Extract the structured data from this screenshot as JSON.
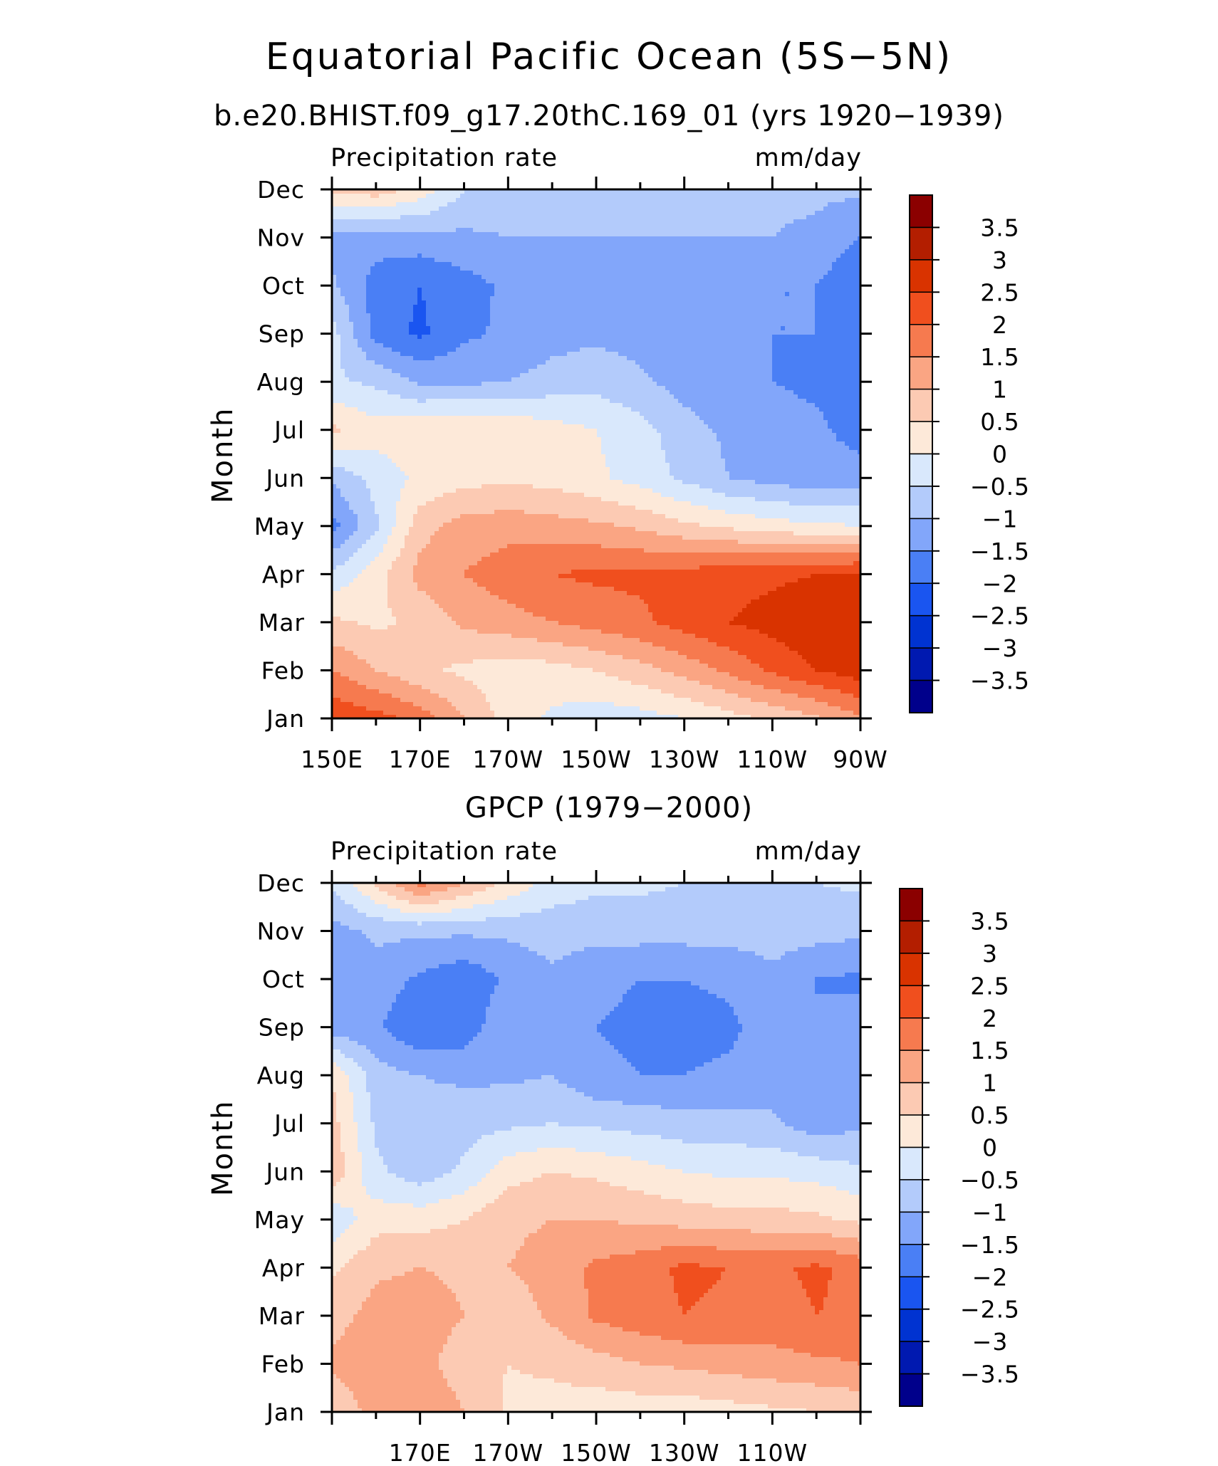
{
  "title": "Equatorial Pacific Ocean (5S−5N)",
  "chart_data": [
    {
      "type": "heatmap",
      "title": "b.e20.BHIST.f09_g17.20thC.169_01 (yrs 1920−1939)",
      "left_label": "Precipitation rate",
      "right_label": "mm/day",
      "ylabel": "Month",
      "x_tick_labels": [
        "150E",
        "170E",
        "170W",
        "150W",
        "130W",
        "110W",
        "90W"
      ],
      "y_tick_labels": [
        "Jan",
        "Feb",
        "Mar",
        "Apr",
        "May",
        "Jun",
        "Jul",
        "Aug",
        "Sep",
        "Oct",
        "Nov",
        "Dec"
      ],
      "x": [
        150,
        160,
        170,
        180,
        190,
        200,
        210,
        220,
        230,
        240,
        250,
        260,
        270
      ],
      "y": [
        "Jan",
        "Feb",
        "Mar",
        "Apr",
        "May",
        "Jun",
        "Jul",
        "Aug",
        "Sep",
        "Oct",
        "Nov",
        "Dec"
      ],
      "xlim": [
        150,
        270
      ],
      "ylim": [
        1,
        12
      ],
      "z": [
        [
          2.4,
          2.2,
          1.8,
          1.0,
          0.3,
          -0.1,
          -0.3,
          -0.2,
          0.0,
          0.3,
          0.6,
          0.9,
          1.4
        ],
        [
          1.5,
          1.0,
          0.6,
          0.4,
          0.2,
          0.3,
          0.5,
          0.8,
          1.2,
          1.6,
          2.1,
          2.5,
          2.8
        ],
        [
          0.6,
          0.4,
          0.6,
          1.1,
          1.3,
          1.5,
          1.7,
          1.9,
          2.2,
          2.5,
          2.7,
          2.9,
          3.0
        ],
        [
          -0.4,
          0.3,
          1.2,
          1.5,
          1.8,
          2.0,
          2.1,
          2.1,
          2.2,
          2.3,
          2.4,
          2.5,
          2.6
        ],
        [
          -1.7,
          -0.6,
          0.8,
          1.2,
          1.3,
          1.2,
          1.1,
          0.9,
          0.6,
          0.4,
          0.2,
          0.1,
          0.0
        ],
        [
          -0.9,
          -0.3,
          0.1,
          0.3,
          0.4,
          0.3,
          0.1,
          -0.2,
          -0.6,
          -1.0,
          -1.2,
          -1.3,
          -1.3
        ],
        [
          0.6,
          0.2,
          0.4,
          0.5,
          0.4,
          0.2,
          0.0,
          -0.3,
          -0.8,
          -1.1,
          -1.3,
          -1.4,
          -1.7
        ],
        [
          -0.4,
          -0.6,
          -1.1,
          -1.1,
          -1.0,
          -0.8,
          -0.7,
          -0.9,
          -1.2,
          -1.4,
          -1.5,
          -1.6,
          -1.8
        ],
        [
          -0.3,
          -1.7,
          -2.1,
          -1.6,
          -1.4,
          -1.2,
          -1.1,
          -1.2,
          -1.3,
          -1.4,
          -1.5,
          -1.5,
          -1.8
        ],
        [
          -0.9,
          -1.7,
          -2.0,
          -1.7,
          -1.4,
          -1.3,
          -1.2,
          -1.2,
          -1.3,
          -1.4,
          -1.5,
          -1.5,
          -2.0
        ],
        [
          -1.2,
          -1.3,
          -1.2,
          -1.1,
          -1.0,
          -1.0,
          -1.0,
          -1.0,
          -1.0,
          -1.0,
          -1.0,
          -1.1,
          -1.5
        ],
        [
          0.6,
          0.8,
          0.3,
          -0.5,
          -0.8,
          -0.9,
          -0.9,
          -0.9,
          -0.9,
          -0.9,
          -0.9,
          -0.9,
          -0.9
        ]
      ],
      "contour_levels": [
        -3.5,
        -3,
        -2.5,
        -2,
        -1.5,
        -1,
        -0.5,
        0,
        0.5,
        1,
        1.5,
        2,
        2.5,
        3,
        3.5
      ],
      "colorbar_labels": [
        "3.5",
        "3",
        "2.5",
        "2",
        "1.5",
        "1",
        "0.5",
        "0",
        "−0.5",
        "−1",
        "−1.5",
        "−2",
        "−2.5",
        "−3",
        "−3.5"
      ],
      "colors": [
        "#00008b",
        "#0019b0",
        "#0033d1",
        "#1a55f0",
        "#4a7ff5",
        "#82a6fa",
        "#b3cbfb",
        "#d9e8fc",
        "#fde9d9",
        "#fccab3",
        "#faa583",
        "#f67a4f",
        "#f04f1e",
        "#d93300",
        "#b31e00",
        "#8b0000"
      ],
      "legend": "right"
    },
    {
      "type": "heatmap",
      "title": "GPCP (1979−2000)",
      "left_label": "Precipitation rate",
      "right_label": "mm/day",
      "ylabel": "Month",
      "x_tick_labels": [
        "170E",
        "170W",
        "150W",
        "130W",
        "110W"
      ],
      "y_tick_labels": [
        "Jan",
        "Feb",
        "Mar",
        "Apr",
        "May",
        "Jun",
        "Jul",
        "Aug",
        "Sep",
        "Oct",
        "Nov",
        "Dec"
      ],
      "x": [
        150,
        160,
        170,
        180,
        190,
        200,
        210,
        220,
        230,
        240,
        250,
        260,
        270
      ],
      "y": [
        "Jan",
        "Feb",
        "Mar",
        "Apr",
        "May",
        "Jun",
        "Jul",
        "Aug",
        "Sep",
        "Oct",
        "Nov",
        "Dec"
      ],
      "xlim": [
        150,
        270
      ],
      "ylim": [
        1,
        12
      ],
      "z": [
        [
          0.6,
          1.2,
          1.5,
          1.0,
          0.4,
          0.3,
          0.2,
          0.2,
          0.2,
          0.3,
          0.4,
          0.5,
          0.6
        ],
        [
          1.1,
          1.3,
          1.2,
          0.7,
          0.5,
          0.6,
          0.8,
          1.0,
          1.1,
          1.2,
          1.3,
          1.4,
          1.5
        ],
        [
          0.8,
          1.2,
          1.3,
          1.0,
          0.7,
          1.1,
          1.6,
          1.8,
          2.0,
          1.9,
          1.8,
          2.0,
          1.9
        ],
        [
          0.4,
          0.9,
          1.0,
          0.9,
          1.0,
          1.2,
          1.6,
          1.8,
          2.1,
          2.0,
          1.9,
          2.1,
          1.8
        ],
        [
          -0.4,
          0.3,
          0.3,
          0.5,
          0.9,
          1.0,
          1.0,
          0.9,
          0.8,
          0.7,
          0.7,
          0.6,
          0.4
        ],
        [
          0.9,
          -0.4,
          -0.8,
          -0.4,
          0.3,
          0.5,
          0.4,
          0.2,
          0.0,
          -0.1,
          -0.1,
          -0.2,
          -0.4
        ],
        [
          0.7,
          -0.6,
          -0.8,
          -0.7,
          -0.6,
          -0.5,
          -0.6,
          -0.7,
          -0.8,
          -0.8,
          -0.9,
          -1.3,
          -1.1
        ],
        [
          0.5,
          -0.8,
          -1.0,
          -1.1,
          -1.1,
          -1.0,
          -1.4,
          -1.5,
          -1.5,
          -1.4,
          -1.3,
          -1.5,
          -1.2
        ],
        [
          -1.3,
          -1.4,
          -2.0,
          -1.8,
          -1.1,
          -1.0,
          -1.5,
          -1.6,
          -1.7,
          -1.6,
          -1.3,
          -1.5,
          -1.3
        ],
        [
          -1.4,
          -1.2,
          -1.6,
          -1.9,
          -1.4,
          -1.1,
          -1.4,
          -1.5,
          -1.5,
          -1.4,
          -1.1,
          -1.5,
          -1.6
        ],
        [
          -1.2,
          -0.9,
          -0.9,
          -0.9,
          -0.9,
          -0.8,
          -0.8,
          -0.8,
          -0.8,
          -0.8,
          -0.8,
          -0.8,
          -0.9
        ],
        [
          -0.4,
          0.6,
          1.7,
          1.0,
          0.4,
          -0.2,
          -0.4,
          -0.4,
          -0.5,
          -0.5,
          -0.5,
          -0.5,
          -0.4
        ]
      ],
      "contour_levels": [
        -3.5,
        -3,
        -2.5,
        -2,
        -1.5,
        -1,
        -0.5,
        0,
        0.5,
        1,
        1.5,
        2,
        2.5,
        3,
        3.5
      ],
      "colorbar_labels": [
        "3.5",
        "3",
        "2.5",
        "2",
        "1.5",
        "1",
        "0.5",
        "0",
        "−0.5",
        "−1",
        "−1.5",
        "−2",
        "−2.5",
        "−3",
        "−3.5"
      ],
      "colors": [
        "#00008b",
        "#0019b0",
        "#0033d1",
        "#1a55f0",
        "#4a7ff5",
        "#82a6fa",
        "#b3cbfb",
        "#d9e8fc",
        "#fde9d9",
        "#fccab3",
        "#faa583",
        "#f67a4f",
        "#f04f1e",
        "#d93300",
        "#b31e00",
        "#8b0000"
      ],
      "legend": "right"
    }
  ]
}
